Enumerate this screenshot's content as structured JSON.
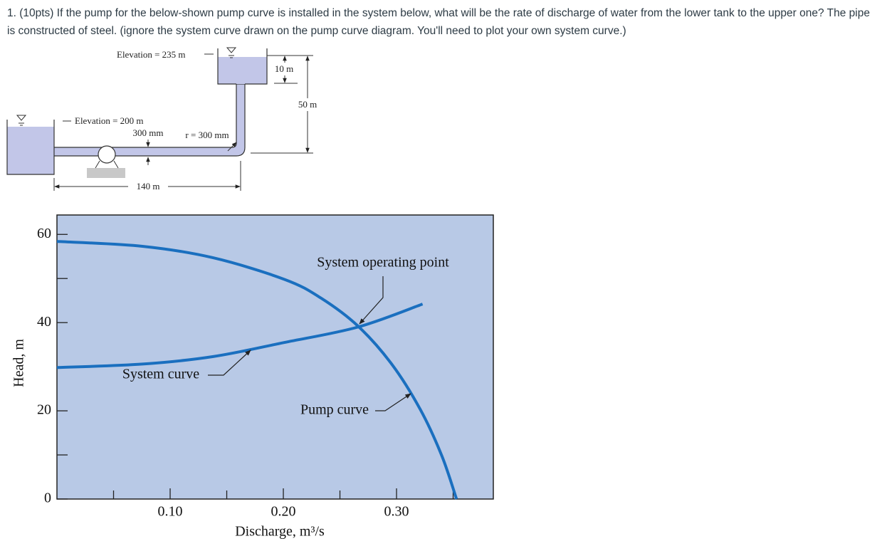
{
  "question": {
    "text": "1. (10pts) If the pump for the below-shown pump curve is installed in the system below, what will be the rate of discharge of water from the lower tank to the upper one? The pipe is constructed of steel. (ignore the system curve drawn on the pump curve diagram. You'll need to plot your own system curve.)"
  },
  "diagram": {
    "upper_elevation": "Elevation = 235 m",
    "depth_label": "10 m",
    "rise_label": "50 m",
    "lower_elevation": "Elevation = 200 m",
    "diameter_label": "300 mm",
    "bend_radius_label": "r = 300 mm",
    "length_label": "140 m"
  },
  "chart_data": {
    "type": "line",
    "x_label": "Discharge, m³/s",
    "y_label": "Head, m",
    "xlim": [
      0,
      0.3855
    ],
    "ylim": [
      0,
      64.4
    ],
    "xticks": [
      {
        "value": 0.1,
        "label": "0.10"
      },
      {
        "value": 0.2,
        "label": "0.20"
      },
      {
        "value": 0.3,
        "label": "0.30"
      }
    ],
    "xminor_ticks": [
      0.05,
      0.15,
      0.25,
      0.35
    ],
    "yticks": [
      0,
      20,
      40,
      60
    ],
    "yminor_ticks": [
      10,
      30,
      50
    ],
    "background": "#b8c9e6",
    "series": [
      {
        "name": "Pump curve",
        "color": "#1a6fbf",
        "x": [
          0,
          0.0755,
          0.138,
          0.201,
          0.233,
          0.266,
          0.296,
          0.321,
          0.34,
          0.353
        ],
        "values": [
          58.4,
          57.3,
          54.7,
          49.8,
          45.6,
          39.2,
          30.5,
          20.3,
          9.8,
          0
        ]
      },
      {
        "name": "System curve",
        "color": "#1a6fbf",
        "x": [
          0,
          0.0755,
          0.138,
          0.201,
          0.266,
          0.323
        ],
        "values": [
          29.8,
          30.6,
          32.3,
          35.5,
          39.0,
          44.2
        ]
      }
    ],
    "annotations": [
      {
        "text": "System operating point"
      }
    ]
  }
}
